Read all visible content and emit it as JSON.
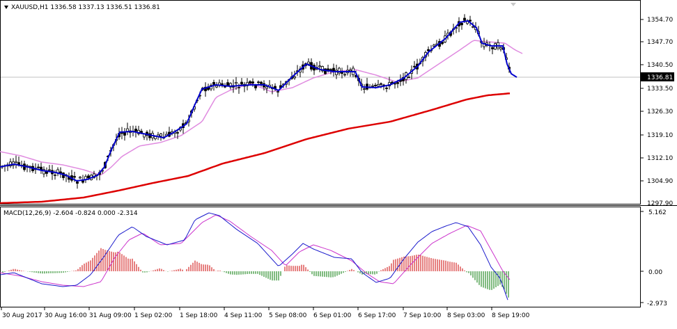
{
  "symbol_info": "XAUUSD,H1  1336.58 1337.13 1336.51 1336.81",
  "price_axis": {
    "ticks": [
      "1354.70",
      "1347.70",
      "1340.50",
      "1333.50",
      "1326.30",
      "1319.10",
      "1312.10",
      "1304.90",
      "1297.90"
    ],
    "current_price": "1336.81"
  },
  "macd": {
    "label": "MACD(12,26,9) -2.604 -0.824 0.000 -2.314",
    "ticks": [
      "5.162",
      "0.00",
      "-2.973"
    ]
  },
  "time_axis": {
    "labels": [
      "30 Aug 2017",
      "30 Aug 16:00",
      "31 Aug 09:00",
      "1 Sep 02:00",
      "1 Sep 18:00",
      "4 Sep 11:00",
      "5 Sep 08:00",
      "6 Sep 01:00",
      "6 Sep 17:00",
      "7 Sep 10:00",
      "8 Sep 03:00",
      "8 Sep 19:00"
    ]
  },
  "colors": {
    "fast_ma": "#0000cc",
    "mid_ma": "#e08be0",
    "slow_ma": "#dd0000",
    "macd_line": "#1a1acc",
    "signal_line": "#cc33cc",
    "hist_pos": "#cc0000",
    "hist_neg": "#007700",
    "candles": "#000000"
  },
  "chart_data": {
    "type": "line",
    "price_ylim": [
      1297.9,
      1357.8
    ],
    "macd_ylim": [
      -2.973,
      5.162
    ],
    "series": []
  }
}
